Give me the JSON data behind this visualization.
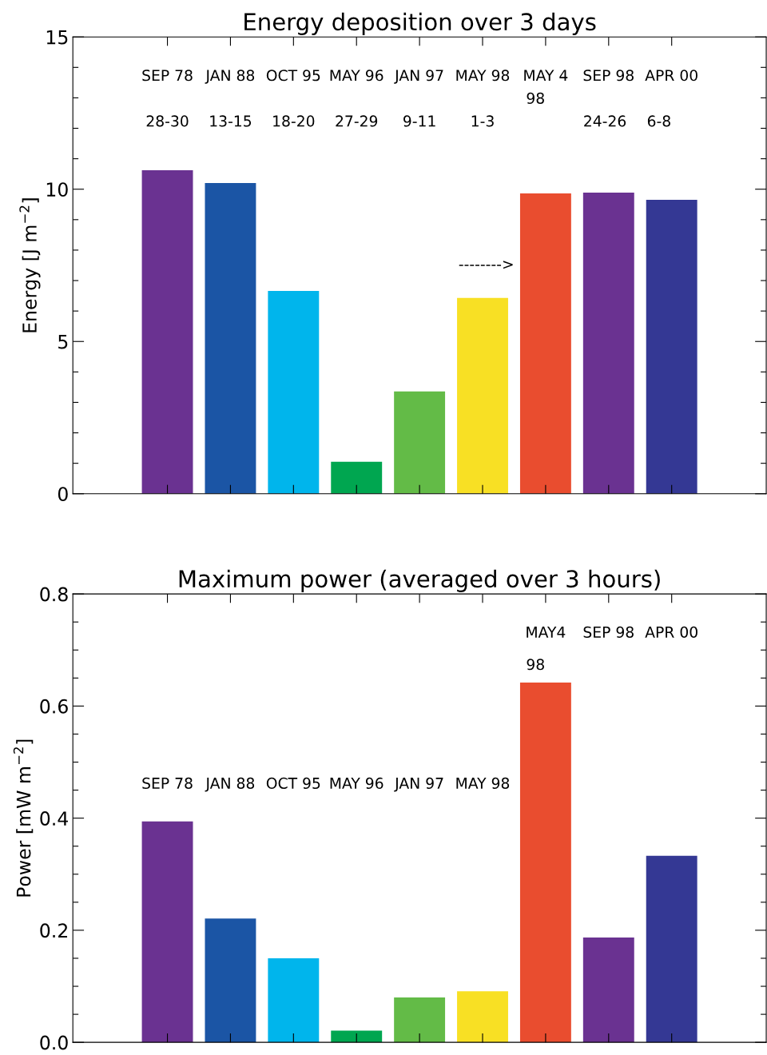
{
  "chart_data": [
    {
      "type": "bar",
      "title": "Energy deposition over 3 days",
      "ylabel": "Energy [J m$^{−2}$]",
      "categories": [
        null,
        null,
        null,
        null,
        null,
        null,
        null,
        null,
        null,
        null,
        null
      ],
      "values": [
        null,
        10.62,
        10.2,
        6.66,
        1.05,
        3.36,
        6.43,
        9.86,
        9.89,
        9.65,
        null
      ],
      "colors": [
        "#ffffff",
        "#6a3291",
        "#1b55a5",
        "#00b5ec",
        "#00a650",
        "#63bb47",
        "#f8e024",
        "#e94d2f",
        "#6a3291",
        "#343894",
        "#ffffff"
      ],
      "ylim": [
        0,
        15
      ],
      "yticks": [
        0,
        {
          "value": 1,
          "label": null
        },
        {
          "value": 2,
          "label": null
        },
        {
          "value": 3,
          "label": null
        },
        {
          "value": 4,
          "label": null
        },
        5,
        {
          "value": 6,
          "label": null
        },
        {
          "value": 7,
          "label": null
        },
        {
          "value": 8,
          "label": null
        },
        {
          "value": 9,
          "label": null
        },
        10,
        {
          "value": 11,
          "label": null
        },
        {
          "value": 12,
          "label": null
        },
        {
          "value": 13,
          "label": null
        },
        {
          "value": 14,
          "label": null
        },
        15
      ],
      "tick_labels": "y",
      "annotations": [
        "SEP 78",
        "JAN 88",
        "OCT 95",
        "MAY 96",
        "JAN 97",
        "MAY 98",
        "MAY 4",
        "SEP 98",
        "APR 00",
        "28-30",
        "13-15",
        "18-20",
        "27-29",
        "9-11",
        "1-3",
        "98",
        "24-26",
        "6-8",
        "-------->"
      ]
    },
    {
      "type": "bar",
      "title": "Maximum power (averaged over 3 hours)",
      "ylabel": "Power [mW m$^{−2}$]",
      "categories": [
        null,
        null,
        null,
        null,
        null,
        null,
        null,
        null,
        null,
        null,
        null
      ],
      "values": [
        null,
        0.394,
        0.221,
        0.15,
        0.021,
        0.08,
        0.091,
        0.642,
        0.187,
        0.333,
        null
      ],
      "colors": [
        "#ffffff",
        "#6a3291",
        "#1b55a5",
        "#00b5ec",
        "#00a650",
        "#63bb47",
        "#f8e024",
        "#e94d2f",
        "#6a3291",
        "#343894",
        "#ffffff"
      ],
      "ylim": [
        0,
        0.8
      ],
      "yticks": [
        {
          "value": 0,
          "label": "0.0"
        },
        {
          "value": 0.05,
          "label": null
        },
        {
          "value": 0.1,
          "label": null
        },
        {
          "value": 0.15,
          "label": null
        },
        {
          "value": 0.2,
          "label": "0.2"
        },
        {
          "value": 0.25,
          "label": null
        },
        {
          "value": 0.3,
          "label": null
        },
        {
          "value": 0.35,
          "label": null
        },
        {
          "value": 0.4,
          "label": "0.4"
        },
        {
          "value": 0.45,
          "label": null
        },
        {
          "value": 0.5,
          "label": null
        },
        {
          "value": 0.55,
          "label": null
        },
        {
          "value": 0.6,
          "label": "0.6"
        },
        {
          "value": 0.65,
          "label": null
        },
        {
          "value": 0.7,
          "label": null
        },
        {
          "value": 0.75,
          "label": null
        },
        {
          "value": 0.8,
          "label": "0.8"
        }
      ],
      "tick_labels": "y",
      "annotations": [
        "SEP 78",
        "JAN 88",
        "OCT 95",
        "MAY 96",
        "JAN 97",
        "MAY 98",
        "MAY4",
        "SEP 98",
        "APR 00",
        "98"
      ]
    }
  ]
}
